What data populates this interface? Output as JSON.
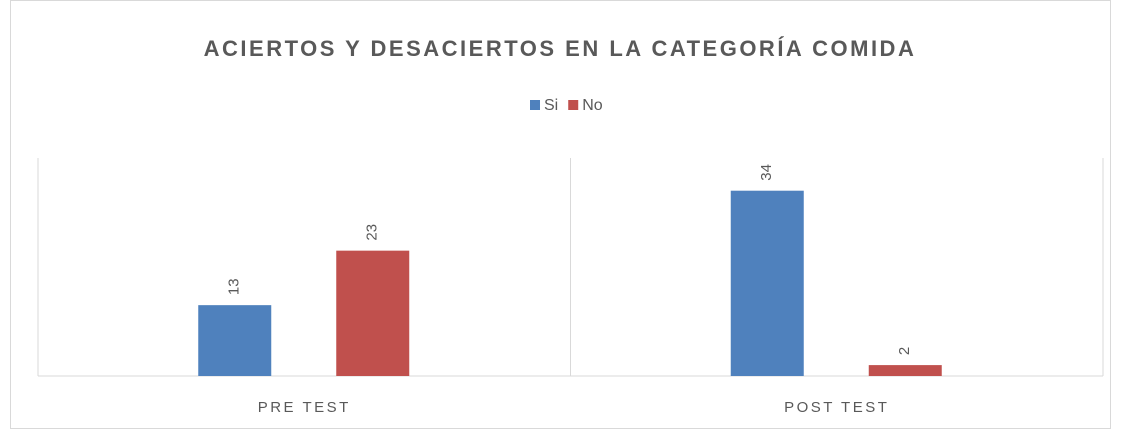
{
  "chart_data": {
    "type": "bar",
    "title": "ACIERTOS Y DESACIERTOS EN LA CATEGORÍA COMIDA",
    "categories": [
      "PRE TEST",
      "POST TEST"
    ],
    "series": [
      {
        "name": "Si",
        "color": "#4f81bd",
        "values": [
          13,
          34
        ]
      },
      {
        "name": "No",
        "color": "#c0504d",
        "values": [
          23,
          2
        ]
      }
    ],
    "ylim": [
      0,
      40
    ],
    "legend": "top"
  }
}
